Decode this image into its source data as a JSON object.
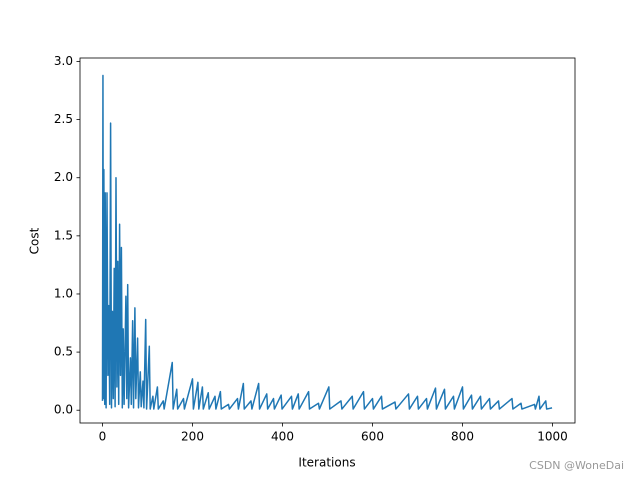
{
  "chart_data": {
    "type": "line",
    "xlabel": "Iterations",
    "ylabel": "Cost",
    "watermark": "CSDN @WoneDai",
    "color": "#1f77b4",
    "x": [
      0,
      1,
      2,
      3,
      5,
      6,
      8,
      10,
      12,
      14,
      16,
      18,
      20,
      22,
      24,
      26,
      28,
      30,
      32,
      34,
      36,
      38,
      40,
      42,
      44,
      46,
      48,
      52,
      54,
      56,
      58,
      62,
      64,
      67,
      69,
      72,
      74,
      78,
      80,
      84,
      86,
      90,
      92,
      96,
      98,
      104,
      106,
      112,
      114,
      122,
      124,
      135,
      137,
      155,
      157,
      165,
      167,
      180,
      182,
      200,
      202,
      212,
      214,
      222,
      224,
      235,
      237,
      250,
      252,
      262,
      264,
      280,
      282,
      300,
      302,
      313,
      315,
      330,
      332,
      347,
      349,
      365,
      367,
      380,
      382,
      397,
      399,
      420,
      422,
      435,
      437,
      458,
      460,
      480,
      482,
      503,
      505,
      530,
      532,
      555,
      557,
      580,
      582,
      600,
      602,
      620,
      622,
      650,
      652,
      680,
      682,
      700,
      702,
      720,
      722,
      740,
      742,
      760,
      762,
      780,
      782,
      800,
      802,
      820,
      822,
      840,
      842,
      860,
      862,
      880,
      882,
      910,
      912,
      930,
      932,
      960,
      962,
      970,
      972,
      985,
      987,
      999
    ],
    "values": [
      0.08,
      2.88,
      0.1,
      2.07,
      0.05,
      1.87,
      0.02,
      1.87,
      0.3,
      0.9,
      0.05,
      2.47,
      0.02,
      0.85,
      0.1,
      1.22,
      0.03,
      2.0,
      0.2,
      1.28,
      0.05,
      1.6,
      0.3,
      1.4,
      0.02,
      0.7,
      0.05,
      0.98,
      0.1,
      1.08,
      0.02,
      0.45,
      0.05,
      0.77,
      0.02,
      0.88,
      0.1,
      0.62,
      0.02,
      0.33,
      0.03,
      0.25,
      0.02,
      0.78,
      0.01,
      0.55,
      0.01,
      0.12,
      0.01,
      0.2,
      0.01,
      0.08,
      0.01,
      0.41,
      0.01,
      0.18,
      0.01,
      0.1,
      0.01,
      0.27,
      0.01,
      0.24,
      0.01,
      0.2,
      0.01,
      0.15,
      0.01,
      0.12,
      0.01,
      0.16,
      0.01,
      0.05,
      0.01,
      0.1,
      0.01,
      0.23,
      0.01,
      0.08,
      0.01,
      0.23,
      0.01,
      0.14,
      0.01,
      0.1,
      0.01,
      0.13,
      0.01,
      0.12,
      0.01,
      0.14,
      0.01,
      0.16,
      0.01,
      0.06,
      0.01,
      0.2,
      0.01,
      0.08,
      0.01,
      0.12,
      0.01,
      0.16,
      0.01,
      0.1,
      0.01,
      0.12,
      0.01,
      0.07,
      0.01,
      0.14,
      0.01,
      0.12,
      0.01,
      0.1,
      0.01,
      0.19,
      0.01,
      0.18,
      0.01,
      0.12,
      0.01,
      0.2,
      0.01,
      0.13,
      0.01,
      0.12,
      0.01,
      0.1,
      0.01,
      0.08,
      0.01,
      0.1,
      0.01,
      0.06,
      0.01,
      0.05,
      0.01,
      0.12,
      0.01,
      0.08,
      0.01,
      0.02
    ],
    "xlim": [
      -50,
      1050
    ],
    "ylim": [
      -0.11,
      3.03
    ],
    "xticks": [
      0,
      200,
      400,
      600,
      800,
      1000
    ],
    "yticks": [
      {
        "value": 0,
        "label": "0.0"
      },
      0.5,
      {
        "value": 1,
        "label": "1.0"
      },
      1.5,
      {
        "value": 2,
        "label": "2.0"
      },
      2.5,
      {
        "value": 3,
        "label": "3.0"
      }
    ]
  }
}
